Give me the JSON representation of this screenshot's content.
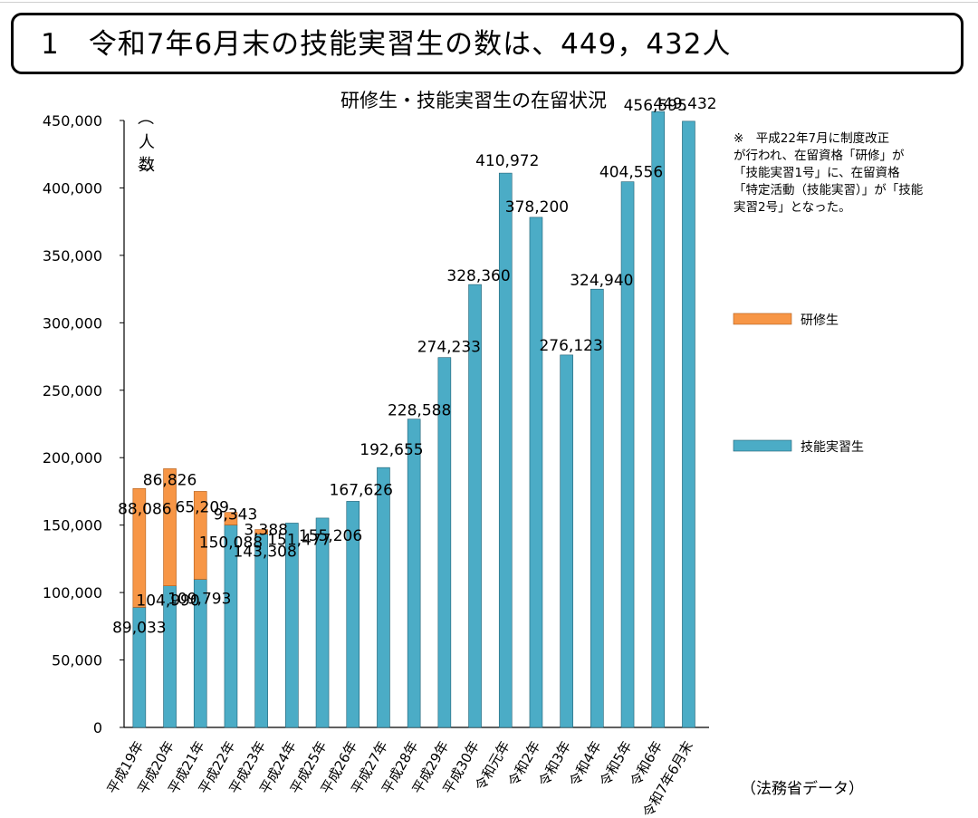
{
  "header": {
    "title": "1　令和7年6月末の技能実習生の数は、449，432人"
  },
  "chart_data": {
    "type": "bar",
    "stacked": true,
    "title": "研修生・技能実習生の在留状況",
    "ylabel": "（人数）",
    "ylabel_chars": [
      "（",
      "人",
      "数",
      "）"
    ],
    "ylim": [
      0,
      450000
    ],
    "yticks": [
      0,
      50000,
      100000,
      150000,
      200000,
      250000,
      300000,
      350000,
      400000,
      450000
    ],
    "ytick_labels": [
      "0",
      "50,000",
      "100,000",
      "150,000",
      "200,000",
      "250,000",
      "300,000",
      "350,000",
      "400,000",
      "450,000"
    ],
    "categories": [
      "平成19年",
      "平成20年",
      "平成21年",
      "平成22年",
      "平成23年",
      "平成24年",
      "平成25年",
      "平成26年",
      "平成27年",
      "平成28年",
      "平成29年",
      "平成30年",
      "令和元年",
      "令和2年",
      "令和3年",
      "令和4年",
      "令和5年",
      "令和6年",
      "令和7年6月末"
    ],
    "series": [
      {
        "name": "技能実習生",
        "color": "#4bacc6",
        "values": [
          89033,
          104990,
          109793,
          150088,
          143308,
          151477,
          155206,
          167626,
          192655,
          228588,
          274233,
          328360,
          410972,
          378200,
          276123,
          324940,
          404556,
          456595,
          449432
        ],
        "labels": [
          "89,033",
          "104,990",
          "109,793",
          "150,088",
          "143,308",
          "151,477",
          "155,206",
          "167,626",
          "192,655",
          "228,588",
          "274,233",
          "328,360",
          "410,972",
          "378,200",
          "276,123",
          "324,940",
          "404,556",
          "456,595",
          "449,432"
        ]
      },
      {
        "name": "研修生",
        "color": "#f79646",
        "values": [
          88086,
          86826,
          65209,
          9343,
          3388,
          0,
          0,
          0,
          0,
          0,
          0,
          0,
          0,
          0,
          0,
          0,
          0,
          0,
          0
        ],
        "labels": [
          "88,086",
          "86,826",
          "65,209",
          "9,343",
          "3,388",
          "",
          "",
          "",
          "",
          "",
          "",
          "",
          "",
          "",
          "",
          "",
          "",
          "",
          ""
        ]
      }
    ],
    "legend_position": "right",
    "note_lines": [
      "※　平成22年7月に制度改正",
      "が行われ、在留資格「研修」が",
      "「技能実習1号」に、在留資格",
      "「特定活動（技能実習）」が「技能",
      "実習2号」となった。"
    ],
    "source": "（法務省データ）",
    "grid": false
  }
}
